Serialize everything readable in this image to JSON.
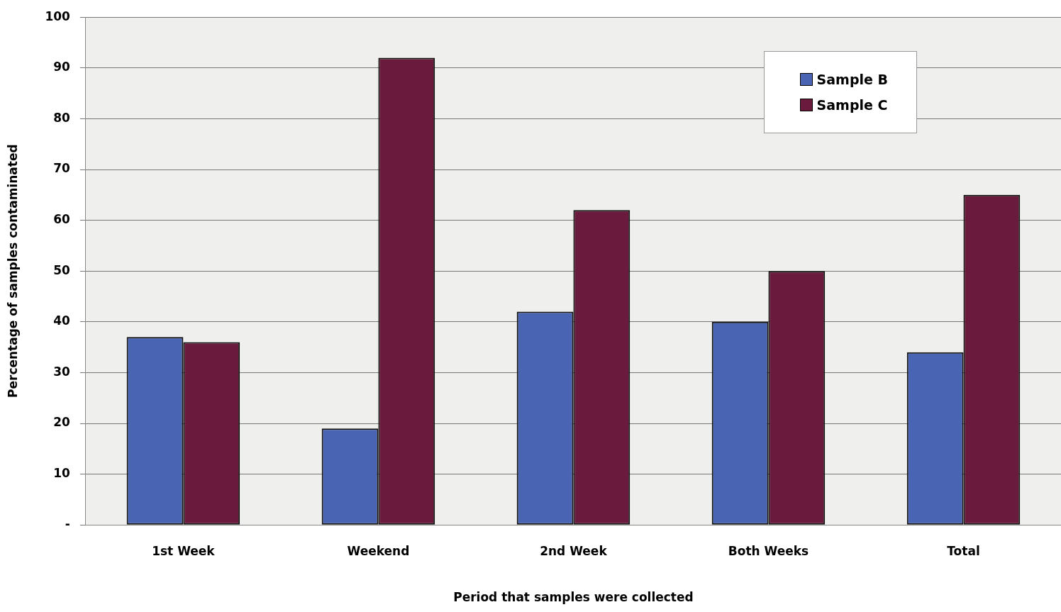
{
  "chart_data": {
    "type": "bar",
    "xlabel": "Period that samples were collected",
    "ylabel": "Percentage of samples contaminated",
    "categories": [
      "1st Week",
      "Weekend",
      "2nd Week",
      "Both Weeks",
      "Total"
    ],
    "series": [
      {
        "name": "Sample B",
        "color": "#4a64b4",
        "values": [
          37,
          19,
          42,
          40,
          34
        ]
      },
      {
        "name": "Sample C",
        "color": "#6a1a3c",
        "values": [
          36,
          92,
          62,
          50,
          65
        ]
      }
    ],
    "ylim": [
      0,
      100
    ],
    "yticks": [
      {
        "value": 0,
        "label": "-"
      },
      10,
      20,
      30,
      40,
      50,
      60,
      70,
      80,
      90,
      100
    ],
    "grid": "y",
    "legend": "top right"
  }
}
